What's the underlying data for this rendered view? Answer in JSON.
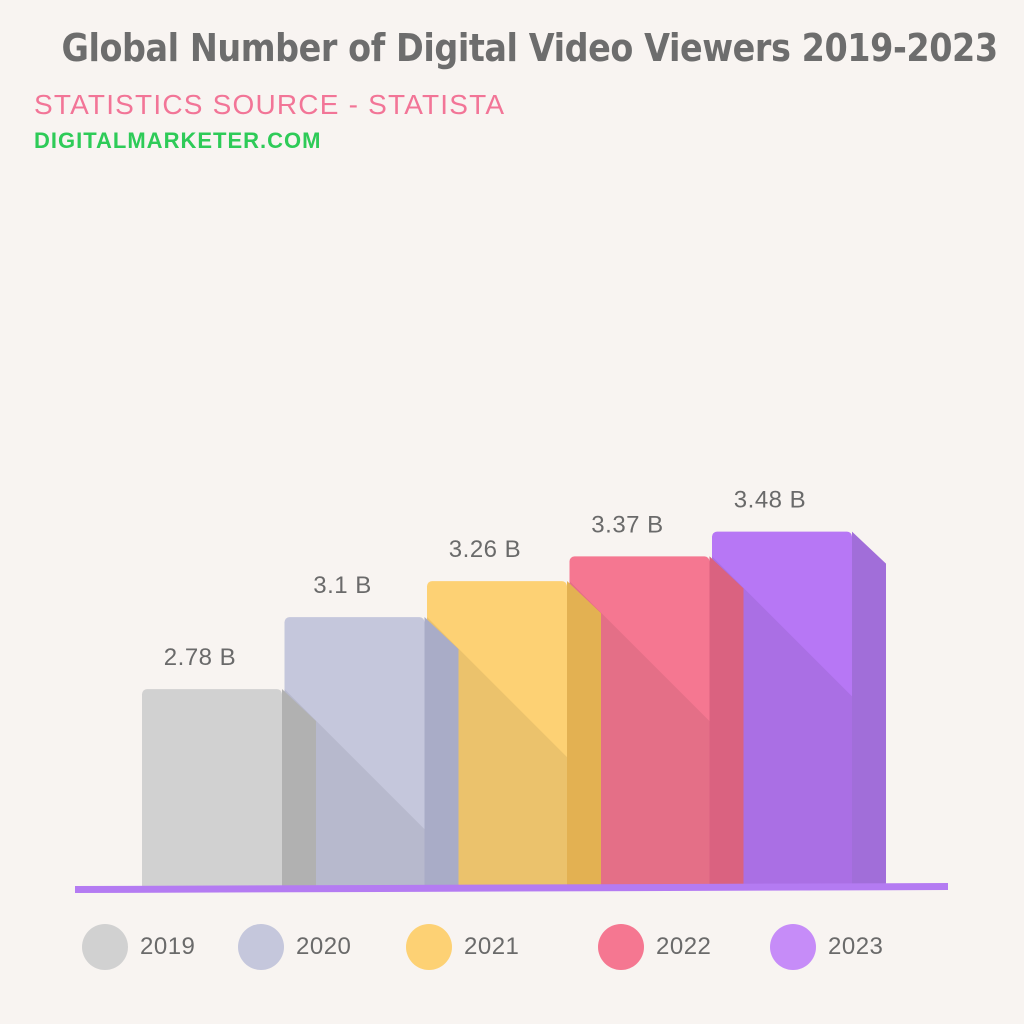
{
  "header": {
    "title": "Global Number of Digital Video Viewers 2019-2023",
    "subtitle": "STATISTICS SOURCE - STATISTA",
    "source_link": "DIGITALMARKETER.COM"
  },
  "colors": {
    "background": "#f8f4f1",
    "title": "#6d6d6d",
    "subtitle": "#f27597",
    "source_link": "#2ecb58",
    "baseline": "#b47bf2",
    "value_label": "#6a6a6a"
  },
  "chart_data": {
    "type": "bar",
    "title": "Global Number of Digital Video Viewers 2019-2023",
    "xlabel": "",
    "ylabel": "",
    "unit": "B",
    "categories": [
      "2019",
      "2020",
      "2021",
      "2022",
      "2023"
    ],
    "values": [
      2.78,
      3.1,
      3.26,
      3.37,
      3.48
    ],
    "value_labels": [
      "2.78 B",
      "3.1 B",
      "3.26 B",
      "3.37 B",
      "3.48 B"
    ],
    "colors": {
      "front": [
        "#d1d1d1",
        "#c5c7dc",
        "#fdd174",
        "#f57791",
        "#b777f5"
      ],
      "side": [
        "#b1b1b1",
        "#a9acc7",
        "#e3b152",
        "#da6280",
        "#a16ed9"
      ]
    },
    "grid": false,
    "legend": "bottom",
    "legend_labels": [
      "2019",
      "2020",
      "2021",
      "2022",
      "2023"
    ],
    "legend_colors": [
      "#d1d1d1",
      "#c5c7dc",
      "#fdd174",
      "#f57791",
      "#c68cf8"
    ]
  }
}
